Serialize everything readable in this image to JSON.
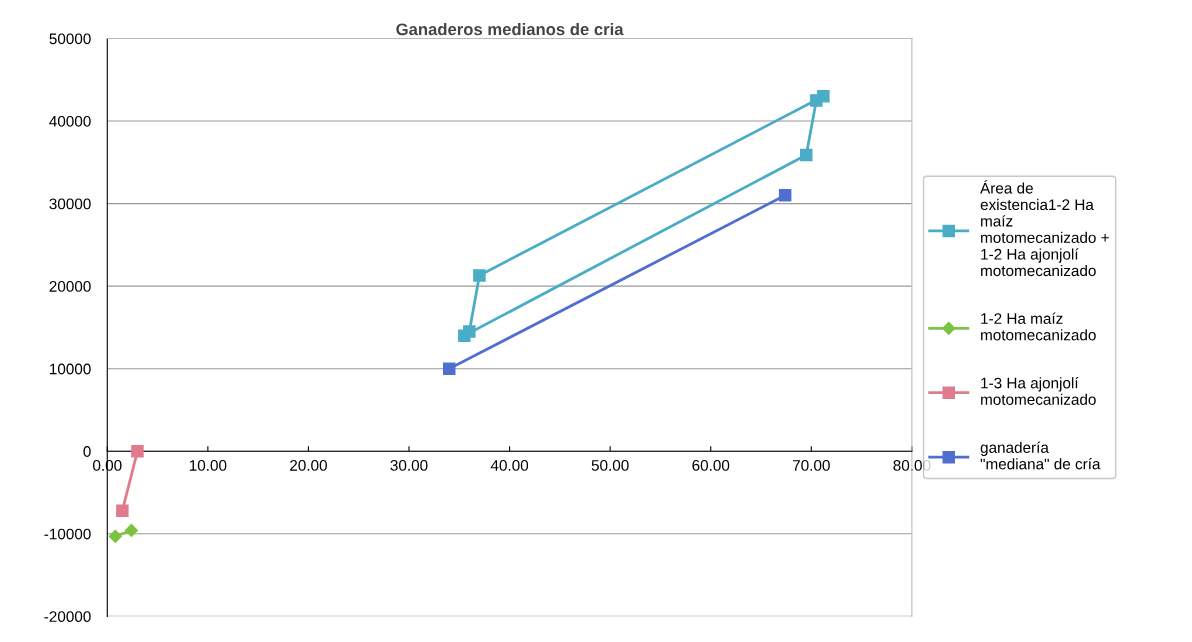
{
  "chart_data": {
    "type": "line",
    "title": "Ganaderos medianos de cria",
    "xlim": [
      0,
      80
    ],
    "xticks": [
      {
        "value": 0,
        "label": "0.00"
      },
      {
        "value": 10,
        "label": "10.00"
      },
      {
        "value": 20,
        "label": "20.00"
      },
      {
        "value": 30,
        "label": "30.00"
      },
      {
        "value": 40,
        "label": "40.00"
      },
      {
        "value": 50,
        "label": "50.00"
      },
      {
        "value": 60,
        "label": "60.00"
      },
      {
        "value": 70,
        "label": "70.00"
      },
      {
        "value": 80,
        "label": "80.00"
      }
    ],
    "ylim": [
      -20000,
      50000
    ],
    "yticks": [
      -20000,
      -10000,
      0,
      10000,
      20000,
      30000,
      40000,
      50000
    ],
    "grid": "y",
    "legend": "right",
    "series": [
      {
        "name": "Área de existencia1-2 Ha maíz motomecanizado + 1-2 Ha ajonjolí motomecanizado",
        "color": "#4bacc6",
        "marker": "square",
        "x": [
          35.5,
          69.5,
          70.5,
          71.2,
          37,
          36
        ],
        "values": [
          14000,
          35900,
          42500,
          43000,
          21300,
          14500
        ]
      },
      {
        "name": "1-2 Ha maíz motomecanizado",
        "color": "#7dc243",
        "marker": "diamond",
        "x": [
          0.8,
          2.4
        ],
        "values": [
          -10300,
          -9600
        ]
      },
      {
        "name": "1-3 Ha ajonjolí motomecanizado",
        "color": "#e07b8c",
        "marker": "square",
        "x": [
          1.5,
          3.0
        ],
        "values": [
          -7200,
          0
        ]
      },
      {
        "name": "ganadería \"mediana\" de cría",
        "color": "#4f6fd0",
        "marker": "square",
        "x": [
          34,
          67.4
        ],
        "values": [
          10000,
          31000
        ]
      }
    ]
  }
}
